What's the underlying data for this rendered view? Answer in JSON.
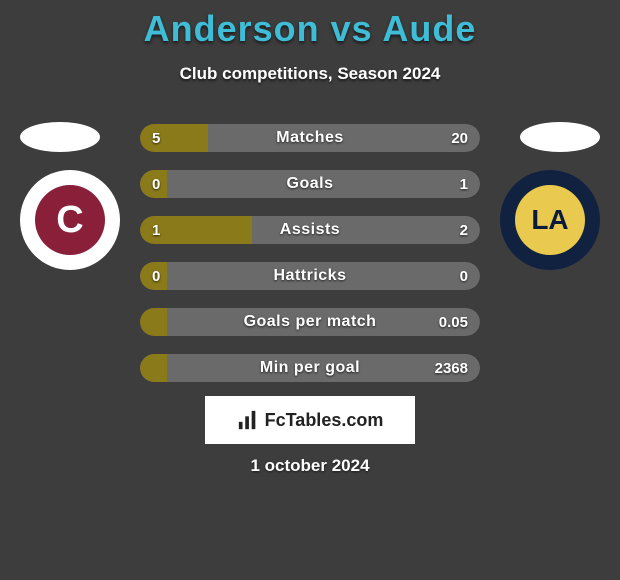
{
  "title_color": "#3fbdd6",
  "title": "Anderson vs Aude",
  "subtitle": "Club competitions, Season 2024",
  "date": "1 october 2024",
  "brand": "FcTables.com",
  "colors": {
    "bar_fill": "#8a7a1a",
    "bar_bg": "#6a6a6a",
    "text": "#ffffff",
    "background": "#3d3d3d"
  },
  "left_club": {
    "inner_bg": "#8a1f3a",
    "inner_text": "C",
    "inner_color": "#ffffff"
  },
  "right_club": {
    "inner_bg": "#e9c94e",
    "inner_text": "LA",
    "inner_color": "#0b1b3d"
  },
  "bars": [
    {
      "label": "Matches",
      "left": "5",
      "right": "20",
      "fill_pct": 20
    },
    {
      "label": "Goals",
      "left": "0",
      "right": "1",
      "fill_pct": 8
    },
    {
      "label": "Assists",
      "left": "1",
      "right": "2",
      "fill_pct": 33
    },
    {
      "label": "Hattricks",
      "left": "0",
      "right": "0",
      "fill_pct": 8
    },
    {
      "label": "Goals per match",
      "left": "",
      "right": "0.05",
      "fill_pct": 8
    },
    {
      "label": "Min per goal",
      "left": "",
      "right": "2368",
      "fill_pct": 8
    }
  ]
}
